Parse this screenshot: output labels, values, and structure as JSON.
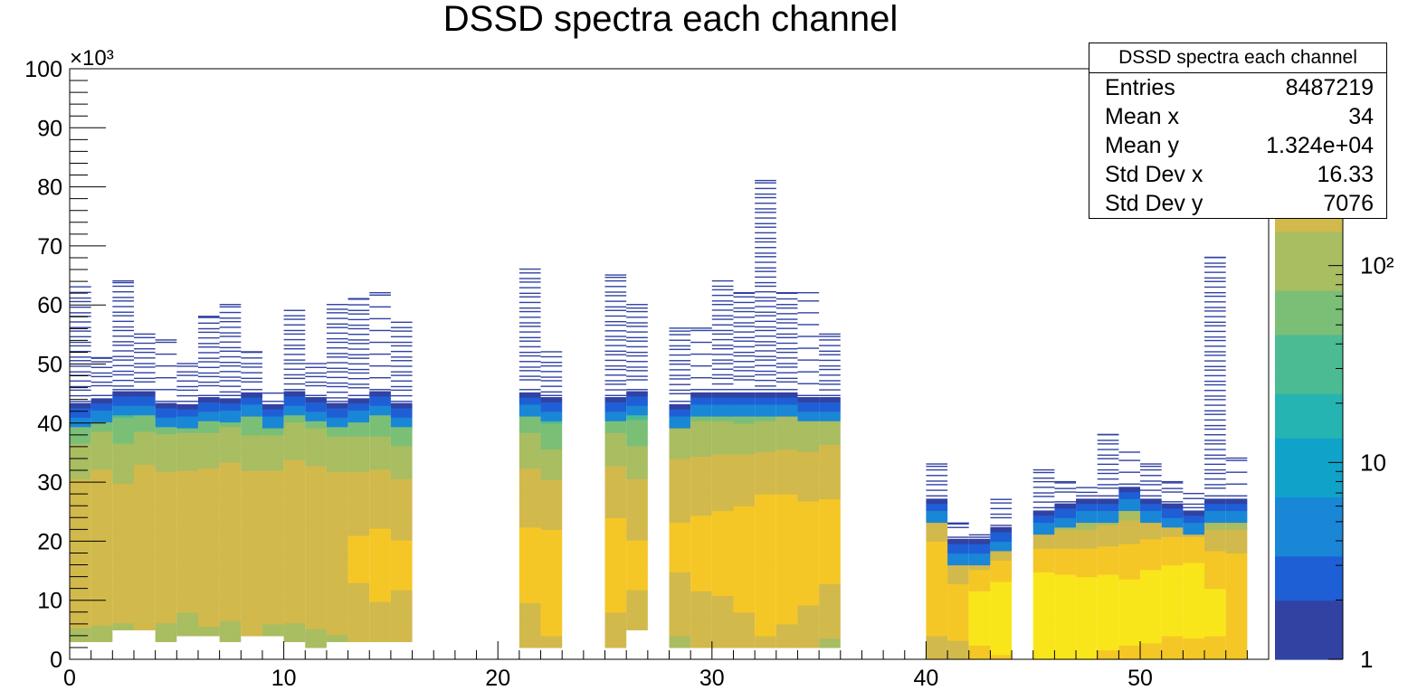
{
  "chart_data": {
    "type": "heatmap",
    "title": "DSSD spectra each channel",
    "xlabel": "",
    "ylabel": "",
    "xlim": [
      0,
      56
    ],
    "ylim": [
      0,
      100
    ],
    "y_multiplier_label": "×10³",
    "x_ticks": [
      0,
      10,
      20,
      30,
      40,
      50
    ],
    "y_ticks": [
      0,
      10,
      20,
      30,
      40,
      50,
      60,
      70,
      80,
      90,
      100
    ],
    "z_scale": "log",
    "z_ticks": [
      {
        "value": 1,
        "label": "1"
      },
      {
        "value": 10,
        "label": "10"
      },
      {
        "value": 100,
        "label": "10²"
      }
    ],
    "z_max": 1000,
    "bin_width": 1,
    "groups": [
      {
        "channels": [
          0,
          1,
          2,
          3,
          4,
          5,
          6,
          7,
          8,
          9,
          10,
          11,
          12,
          13,
          14,
          15
        ],
        "style": "wide"
      },
      {
        "channels": [
          21,
          22,
          25,
          26
        ],
        "style": "narrow"
      },
      {
        "channels": [
          28,
          29,
          30,
          31,
          32,
          33,
          34,
          35
        ],
        "style": "wide"
      },
      {
        "channels": [
          40,
          41,
          42,
          43
        ],
        "style": "low"
      },
      {
        "channels": [
          45,
          46,
          47,
          48,
          49,
          50,
          51,
          52,
          53,
          54
        ],
        "style": "low"
      }
    ],
    "channel_max_y": [
      63,
      51,
      64,
      55,
      54,
      50,
      58,
      60,
      52,
      45,
      59,
      50,
      60,
      61,
      62,
      57,
      0,
      0,
      0,
      0,
      0,
      66,
      52,
      0,
      0,
      65,
      60,
      0,
      56,
      56,
      64,
      62,
      81,
      62,
      62,
      55,
      0,
      0,
      0,
      0,
      33,
      23,
      21,
      27,
      0,
      32,
      30,
      29,
      38,
      35,
      33,
      30,
      28,
      68,
      34,
      0
    ],
    "channel_bulk_top": [
      43,
      44,
      45,
      45,
      43,
      43,
      44,
      44,
      45,
      43,
      45,
      44,
      43,
      44,
      45,
      43,
      0,
      0,
      0,
      0,
      0,
      45,
      44,
      0,
      0,
      44,
      45,
      0,
      43,
      45,
      45,
      45,
      45,
      45,
      44,
      44,
      0,
      0,
      0,
      0,
      27,
      20,
      20,
      22,
      0,
      25,
      26,
      27,
      27,
      29,
      27,
      26,
      25,
      27,
      27,
      0
    ],
    "channel_bulk_bottom": [
      3,
      3,
      5,
      5,
      3,
      4,
      4,
      3,
      4,
      4,
      3,
      2,
      3,
      3,
      3,
      3,
      0,
      0,
      0,
      0,
      0,
      2,
      2,
      0,
      0,
      2,
      5,
      0,
      2,
      2,
      2,
      2,
      2,
      2,
      2,
      2,
      0,
      0,
      0,
      0,
      0,
      0,
      0,
      0,
      0,
      0,
      0,
      0,
      0,
      0,
      0,
      0,
      0,
      0,
      0,
      0
    ],
    "channel_peak_y": [
      18,
      19,
      18,
      19,
      19,
      20,
      19,
      20,
      18,
      19,
      20,
      19,
      18,
      17,
      16,
      16,
      0,
      0,
      0,
      0,
      0,
      16,
      13,
      0,
      0,
      16,
      16,
      0,
      19,
      18,
      18,
      17,
      16,
      17,
      18,
      20,
      0,
      0,
      0,
      0,
      12,
      8,
      7,
      7,
      0,
      7,
      7,
      7,
      8,
      8,
      9,
      10,
      10,
      8,
      9,
      0
    ],
    "channel_peak_count": [
      250,
      260,
      240,
      280,
      260,
      250,
      270,
      260,
      280,
      270,
      260,
      260,
      280,
      300,
      320,
      300,
      0,
      0,
      0,
      0,
      0,
      320,
      360,
      0,
      0,
      340,
      300,
      0,
      300,
      320,
      330,
      360,
      420,
      400,
      360,
      330,
      0,
      0,
      0,
      0,
      450,
      380,
      700,
      800,
      0,
      900,
      800,
      750,
      700,
      650,
      700,
      700,
      750,
      600,
      500,
      0
    ]
  },
  "stats": {
    "title": "DSSD spectra each channel",
    "rows": [
      {
        "label": "Entries",
        "value": "8487219"
      },
      {
        "label": "Mean x",
        "value": "34"
      },
      {
        "label": "Mean y",
        "value": "1.324e+04"
      },
      {
        "label": "Std Dev x",
        "value": "16.33"
      },
      {
        "label": "Std Dev y",
        "value": "7076"
      }
    ]
  },
  "palette": {
    "axis": "#000000",
    "z_colors": [
      "#3142a3",
      "#1f5fd6",
      "#1a86d6",
      "#10a3ca",
      "#26b4b2",
      "#4bbb93",
      "#7bbf77",
      "#a9bd61",
      "#d2b94c",
      "#f5c726",
      "#f9e61a"
    ]
  }
}
